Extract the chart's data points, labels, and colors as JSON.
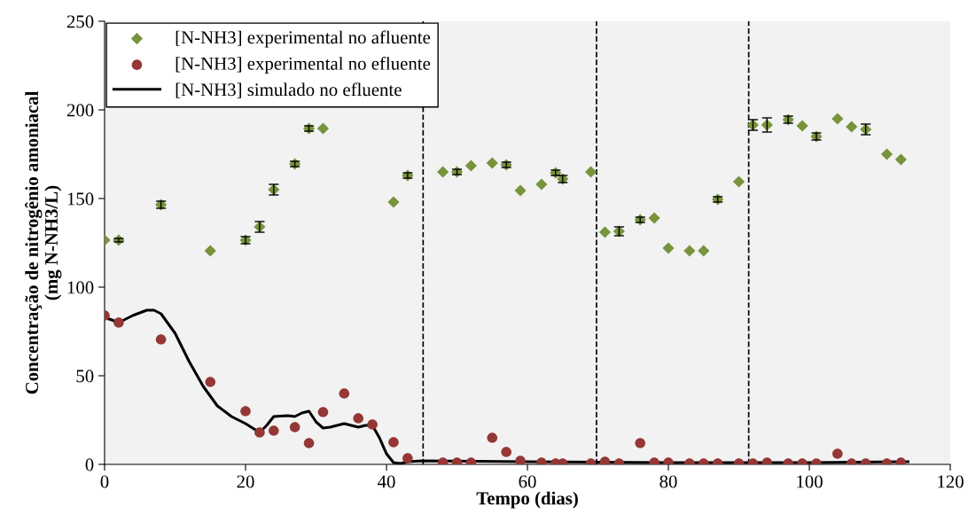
{
  "chart_data": {
    "type": "scatter",
    "xlabel": "Tempo (dias)",
    "ylabel": "Concentração de nitrogênio amoniacal\n(mg N-NH3/L)",
    "xlim": [
      0,
      120
    ],
    "xticks": [
      0,
      20,
      40,
      60,
      80,
      100,
      120
    ],
    "ylim": [
      0,
      250
    ],
    "yticks": [
      0,
      50,
      100,
      150,
      200,
      250
    ],
    "grid": false,
    "legend": "top left",
    "series": [
      {
        "name": "[N-NH3] experimental no afluente",
        "color": "#77933c",
        "marker": "diamond",
        "x": [
          0,
          2,
          8,
          15,
          20,
          22,
          24,
          27,
          29,
          31,
          41,
          43,
          48,
          50,
          52,
          55,
          57,
          59,
          62,
          64,
          65,
          69,
          71,
          73,
          76,
          78,
          80,
          83,
          85,
          87,
          90,
          92,
          94,
          97,
          99,
          101,
          104,
          106,
          108,
          111,
          113
        ],
        "values": [
          126.5,
          126.5,
          146.5,
          120.5,
          126.5,
          134,
          155,
          169.5,
          189.5,
          189.5,
          148,
          163,
          165,
          165,
          168.5,
          170,
          169,
          154.5,
          158,
          164.5,
          161,
          165,
          131,
          131.5,
          138,
          139,
          122,
          120.5,
          120.5,
          149.5,
          159.5,
          191.5,
          191.5,
          194.5,
          191,
          185,
          195,
          190.5,
          189,
          175,
          172
        ],
        "errors": [
          null,
          1,
          2,
          null,
          2,
          3,
          3,
          1.5,
          1.5,
          null,
          null,
          1.5,
          null,
          1.5,
          null,
          null,
          1.5,
          null,
          null,
          1.5,
          2,
          null,
          null,
          2.5,
          1.5,
          null,
          null,
          null,
          null,
          1.5,
          null,
          3,
          4,
          2,
          null,
          2,
          null,
          null,
          3,
          null,
          null
        ]
      },
      {
        "name": "[N-NH3] experimental no efluente",
        "color": "#953735",
        "marker": "circle",
        "x": [
          0,
          2,
          8,
          15,
          20,
          22,
          24,
          27,
          29,
          31,
          34,
          36,
          38,
          41,
          43,
          48,
          50,
          52,
          55,
          57,
          59,
          62,
          64,
          65,
          69,
          71,
          73,
          76,
          78,
          80,
          83,
          85,
          87,
          90,
          92,
          94,
          97,
          99,
          101,
          104,
          106,
          108,
          111,
          113
        ],
        "values": [
          84,
          80,
          70.5,
          46.5,
          30,
          18,
          19,
          21,
          12,
          29.5,
          40,
          26,
          22.5,
          12.5,
          3.5,
          1,
          1,
          1,
          15,
          7,
          2,
          1,
          0.5,
          0.5,
          0.5,
          1.5,
          0.5,
          12,
          1,
          1,
          0.5,
          0.5,
          0.5,
          0.5,
          0.5,
          1,
          0.5,
          0.5,
          0.5,
          6,
          0.5,
          0.5,
          0.5,
          1
        ]
      },
      {
        "name": "[N-NH3] simulado no efluente",
        "color": "#000000",
        "type": "line",
        "marker": "none",
        "line_style": "solid",
        "x": [
          0,
          2,
          4,
          6,
          7,
          8,
          10,
          12,
          14,
          16,
          18,
          20,
          22,
          23,
          24,
          26,
          27,
          28,
          29,
          30,
          31,
          32,
          34,
          35,
          36,
          37,
          38,
          39,
          40,
          41,
          42,
          43,
          45,
          60,
          80,
          100,
          114
        ],
        "values": [
          83,
          80,
          84,
          87,
          87,
          85,
          74,
          58,
          44,
          33,
          27,
          23,
          18,
          22,
          27,
          27.5,
          27,
          29,
          30,
          24,
          20.5,
          21,
          23,
          22,
          21,
          22,
          22,
          15,
          6,
          1,
          0.5,
          1.5,
          2,
          1.5,
          1,
          1,
          1.5
        ]
      }
    ],
    "ref_lines": [
      {
        "axis": "x",
        "value": 45.2,
        "color": "#000000",
        "line_style": "dashed"
      },
      {
        "axis": "x",
        "value": 69.8,
        "color": "#000000",
        "line_style": "dashed"
      },
      {
        "axis": "x",
        "value": 91.4,
        "color": "#000000",
        "line_style": "dashed"
      }
    ]
  }
}
